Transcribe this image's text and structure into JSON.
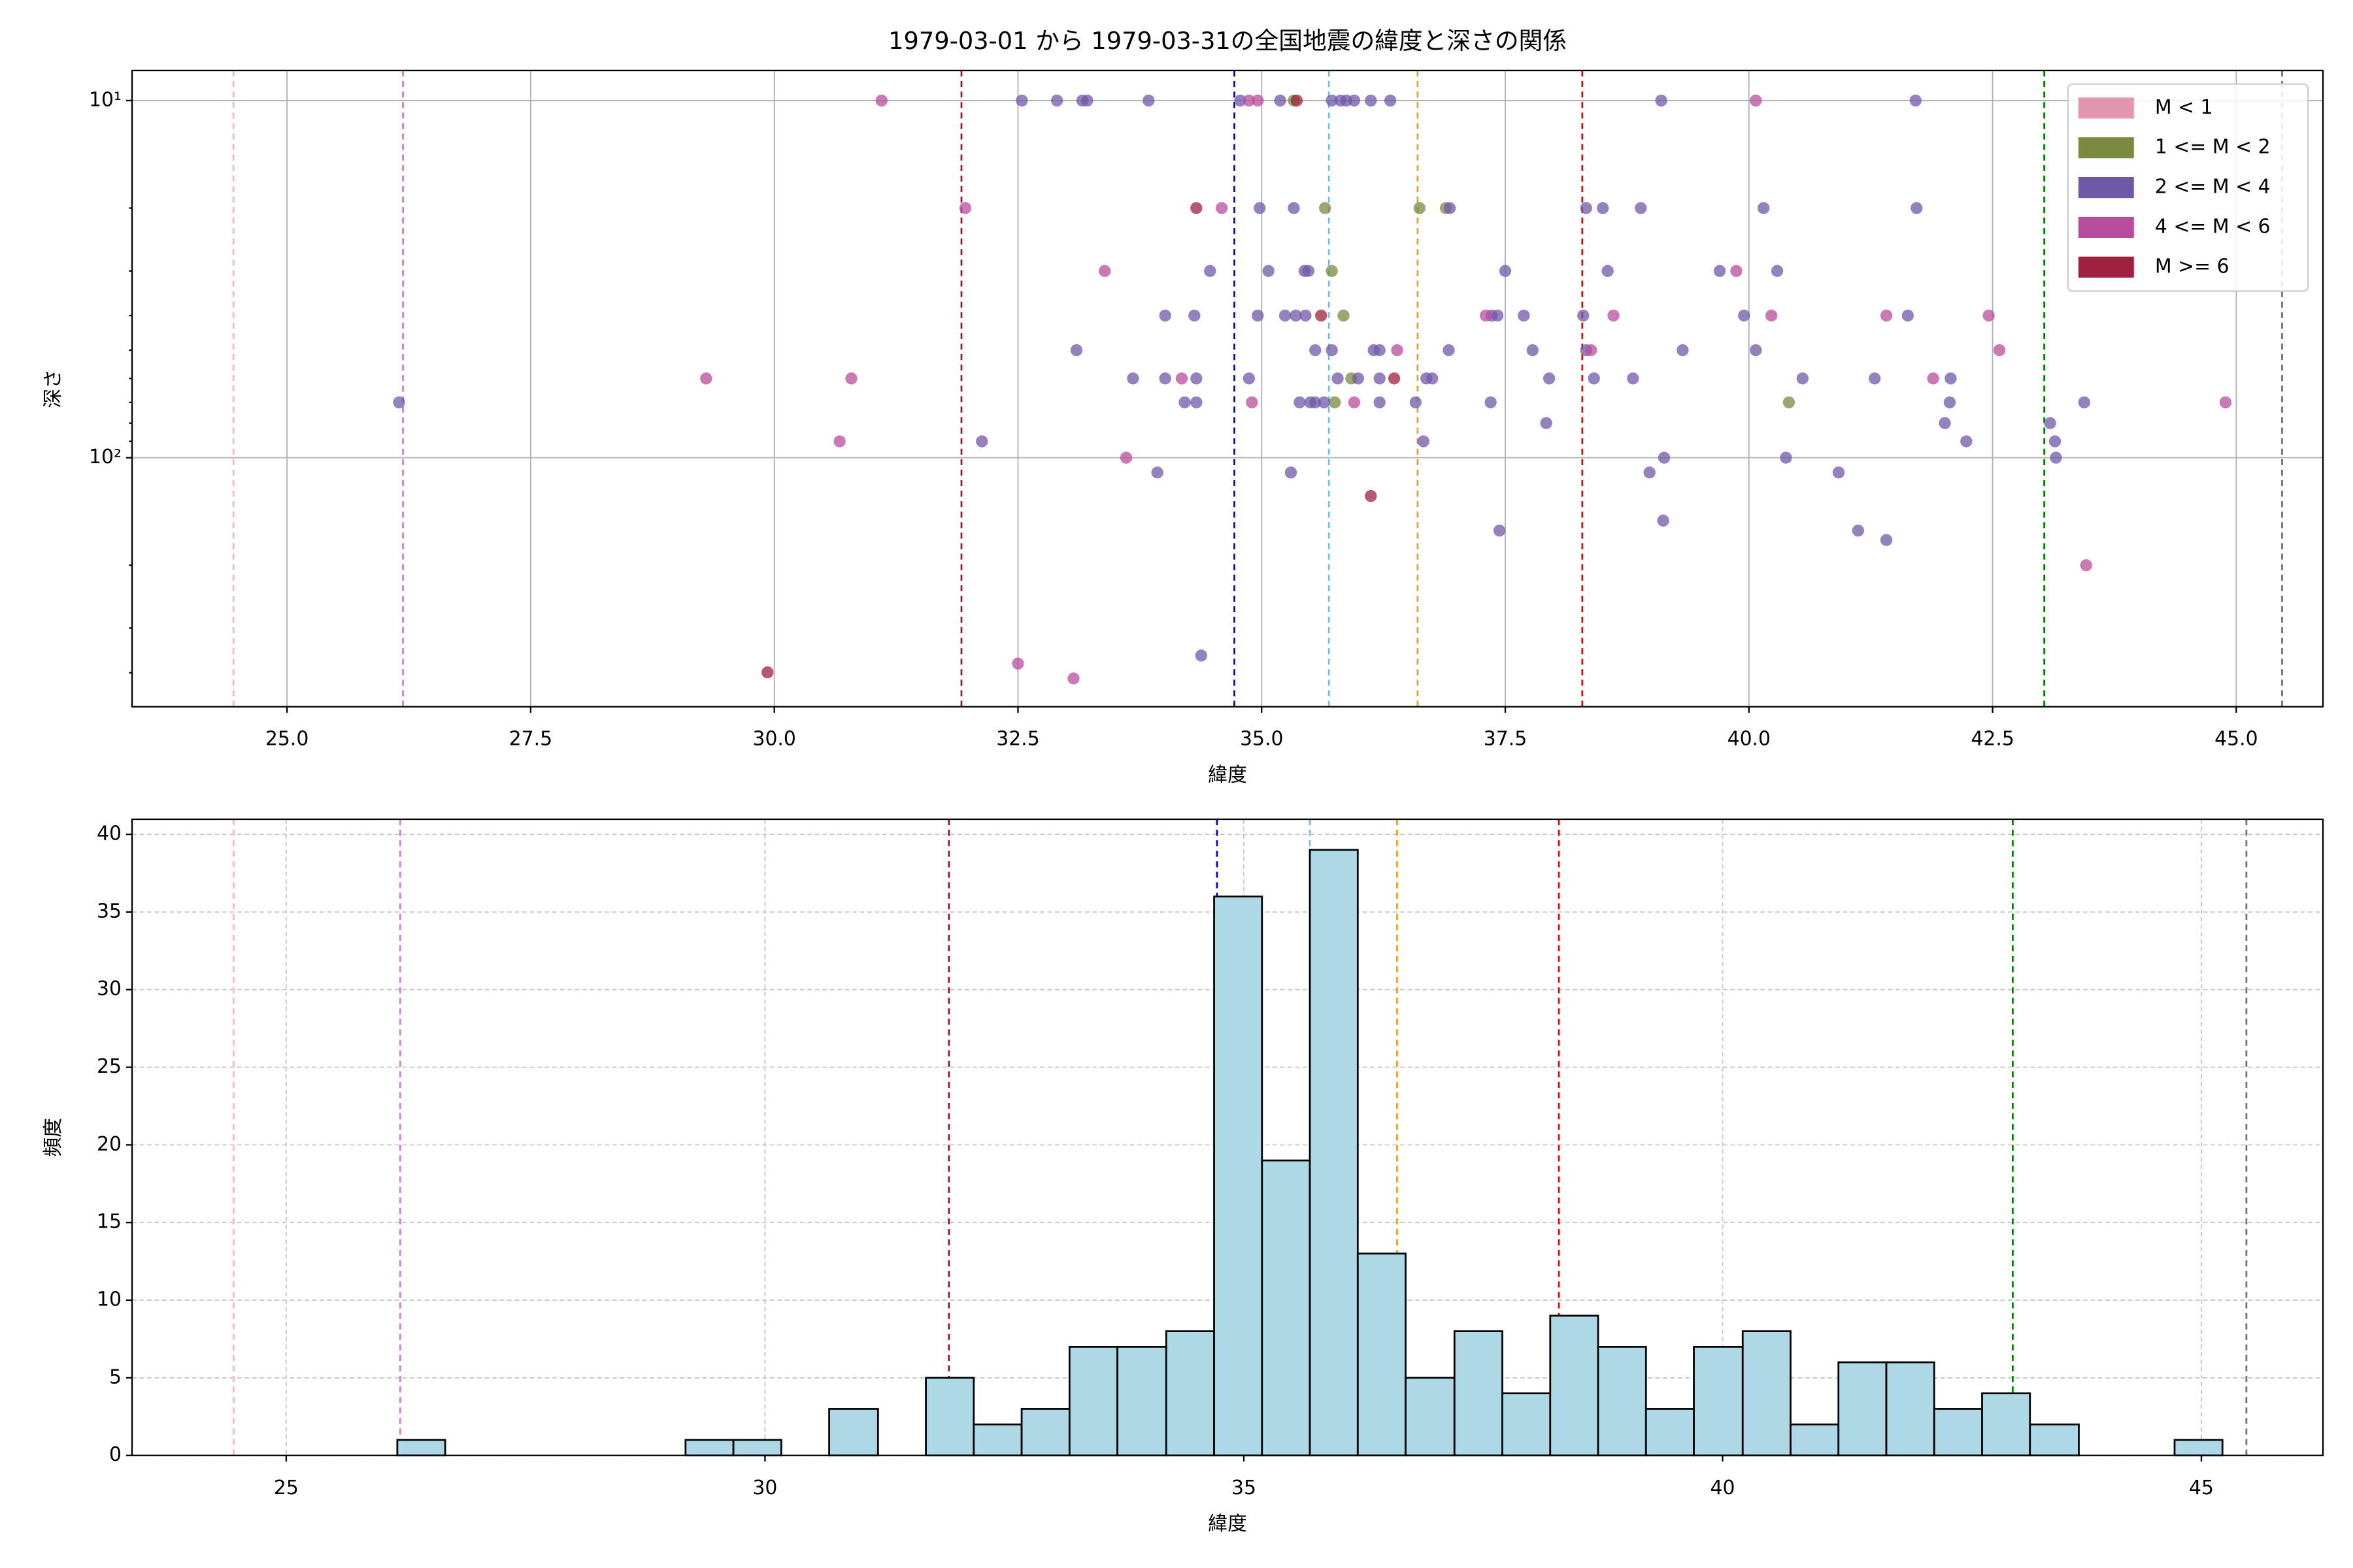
{
  "chart_data": [
    {
      "type": "scatter",
      "title": "1979-03-01 から 1979-03-31の全国地震の緯度と深さの関係",
      "xlabel": "緯度",
      "ylabel": "深さ",
      "yscale": "log",
      "y_inverted": true,
      "grid": true,
      "legend_loc": "upper right",
      "xlim": [
        23.41,
        45.89
      ],
      "ylim": [
        8.24,
        498
      ],
      "xticks": [
        {
          "value": 25,
          "label": "25.0"
        },
        {
          "value": 27.5,
          "label": "27.5"
        },
        {
          "value": 30,
          "label": "30.0"
        },
        {
          "value": 32.5,
          "label": "32.5"
        },
        {
          "value": 35,
          "label": "35.0"
        },
        {
          "value": 37.5,
          "label": "37.5"
        },
        {
          "value": 40,
          "label": "40.0"
        },
        {
          "value": 42.5,
          "label": "42.5"
        },
        {
          "value": 45,
          "label": "45.0"
        }
      ],
      "yticks": [
        {
          "value": 10,
          "label": "10¹"
        },
        {
          "value": 100,
          "label": "10²"
        }
      ],
      "yminorticks": [
        20,
        30,
        40,
        50,
        60,
        70,
        80,
        90,
        200,
        300,
        400
      ],
      "vlines": [
        {
          "x": 24.45,
          "color": "#ffb6c1"
        },
        {
          "x": 26.19,
          "color": "#ee66ee"
        },
        {
          "x": 31.92,
          "color": "#a01828"
        },
        {
          "x": 34.72,
          "color": "#0000ee"
        },
        {
          "x": 35.69,
          "color": "#70c0e0"
        },
        {
          "x": 36.6,
          "color": "#f0a020"
        },
        {
          "x": 38.29,
          "color": "#ee0000"
        },
        {
          "x": 43.03,
          "color": "#008000"
        },
        {
          "x": 45.47,
          "color": "#707070"
        }
      ],
      "series": [
        {
          "name": "M < 1",
          "color": "#e396b0",
          "x": [],
          "values": []
        },
        {
          "name": "1 <= M < 2",
          "color": "#7a8a40",
          "x": [
            35.33,
            35.65,
            36.62,
            36.89,
            35.72,
            35.84,
            35.75,
            40.41,
            35.92
          ],
          "values": [
            10,
            20,
            20,
            20,
            30,
            40,
            70,
            70,
            60
          ]
        },
        {
          "name": "2 <= M < 4",
          "color": "#7058a8",
          "x": [
            32.54,
            32.9,
            33.16,
            33.21,
            33.84,
            34.78,
            35.19,
            35.72,
            35.81,
            35.87,
            35.95,
            36.12,
            36.32,
            39.1,
            41.71,
            34.98,
            35.33,
            36.93,
            38.33,
            38.5,
            38.89,
            40.15,
            41.72,
            34.47,
            35.07,
            35.44,
            35.48,
            37.5,
            38.55,
            39.7,
            40.29,
            34.01,
            34.31,
            34.96,
            35.24,
            35.35,
            35.45,
            37.36,
            37.42,
            37.69,
            38.3,
            39.95,
            41.63,
            33.1,
            35.55,
            35.72,
            36.15,
            36.21,
            36.92,
            37.78,
            38.33,
            39.32,
            40.07,
            33.68,
            34.01,
            34.33,
            34.87,
            35.78,
            35.99,
            36.21,
            36.69,
            36.75,
            37.95,
            38.41,
            38.81,
            40.55,
            41.29,
            42.07,
            26.15,
            34.21,
            34.33,
            35.39,
            35.5,
            35.55,
            35.64,
            36.21,
            36.58,
            37.35,
            42.06,
            43.44,
            37.92,
            42.01,
            43.09,
            32.13,
            36.66,
            42.23,
            43.14,
            39.13,
            40.38,
            43.15,
            33.93,
            35.3,
            38.98,
            40.92,
            39.12,
            37.44,
            41.12,
            41.41,
            34.38
          ],
          "values": [
            10,
            10,
            10,
            10,
            10,
            10,
            10,
            10,
            10,
            10,
            10,
            10,
            10,
            10,
            10,
            20,
            20,
            20,
            20,
            20,
            20,
            20,
            20,
            30,
            30,
            30,
            30,
            30,
            30,
            30,
            30,
            40,
            40,
            40,
            40,
            40,
            40,
            40,
            40,
            40,
            40,
            40,
            40,
            50,
            50,
            50,
            50,
            50,
            50,
            50,
            50,
            50,
            50,
            60,
            60,
            60,
            60,
            60,
            60,
            60,
            60,
            60,
            60,
            60,
            60,
            60,
            60,
            60,
            70,
            70,
            70,
            70,
            70,
            70,
            70,
            70,
            70,
            70,
            70,
            70,
            80,
            80,
            80,
            90,
            90,
            90,
            90,
            100,
            100,
            100,
            110,
            110,
            110,
            110,
            150,
            160,
            160,
            170,
            358
          ]
        },
        {
          "name": "4 <= M < 6",
          "color": "#b84c9c",
          "x": [
            31.1,
            34.87,
            34.96,
            40.07,
            31.96,
            34.59,
            33.39,
            39.87,
            37.3,
            38.61,
            40.23,
            41.41,
            42.46,
            36.39,
            38.38,
            42.57,
            29.3,
            30.79,
            34.18,
            41.89,
            34.9,
            35.95,
            44.89,
            30.67,
            33.61,
            43.46,
            32.5,
            33.07
          ],
          "values": [
            10,
            10,
            10,
            10,
            20,
            20,
            30,
            30,
            40,
            40,
            40,
            40,
            40,
            50,
            50,
            50,
            60,
            60,
            60,
            60,
            70,
            70,
            70,
            90,
            100,
            200,
            377,
            415
          ]
        },
        {
          "name": "M >= 6",
          "color": "#a0203f",
          "x": [
            35.36,
            34.33,
            35.61,
            36.36,
            36.12,
            29.93
          ],
          "values": [
            10,
            20,
            40,
            60,
            128,
            399
          ]
        }
      ]
    },
    {
      "type": "histogram",
      "xlabel": "緯度",
      "ylabel": "頻度",
      "grid": true,
      "color": "#add8e6",
      "xlim": [
        23.39,
        46.27
      ],
      "ylim": [
        0,
        40.97
      ],
      "xticks": [
        25,
        30,
        35,
        40,
        45
      ],
      "yticks": [
        0,
        5,
        10,
        15,
        20,
        25,
        30,
        35,
        40
      ],
      "vlines": [
        {
          "x": 24.45,
          "color": "#ffb6c1"
        },
        {
          "x": 26.19,
          "color": "#ee66ee"
        },
        {
          "x": 31.92,
          "color": "#a01828"
        },
        {
          "x": 34.72,
          "color": "#0000ee"
        },
        {
          "x": 35.69,
          "color": "#70c0e0"
        },
        {
          "x": 36.6,
          "color": "#f0a020"
        },
        {
          "x": 38.29,
          "color": "#ee0000"
        },
        {
          "x": 43.03,
          "color": "#008000"
        },
        {
          "x": 45.47,
          "color": "#707070"
        }
      ],
      "bins": [
        26.16,
        26.66,
        27.16,
        27.66,
        28.17,
        28.67,
        29.17,
        29.67,
        30.17,
        30.67,
        31.18,
        31.68,
        32.18,
        32.68,
        33.18,
        33.68,
        34.19,
        34.69,
        35.19,
        35.69,
        36.19,
        36.69,
        37.2,
        37.7,
        38.2,
        38.7,
        39.2,
        39.7,
        40.21,
        40.71,
        41.21,
        41.71,
        42.21,
        42.71,
        43.21,
        43.72,
        44.22,
        44.72,
        45.22
      ],
      "values": [
        1,
        0,
        0,
        0,
        0,
        0,
        1,
        1,
        0,
        3,
        0,
        5,
        2,
        3,
        7,
        7,
        8,
        36,
        19,
        39,
        13,
        5,
        8,
        4,
        9,
        7,
        3,
        7,
        8,
        2,
        6,
        6,
        3,
        4,
        2,
        0,
        0,
        1
      ]
    }
  ]
}
